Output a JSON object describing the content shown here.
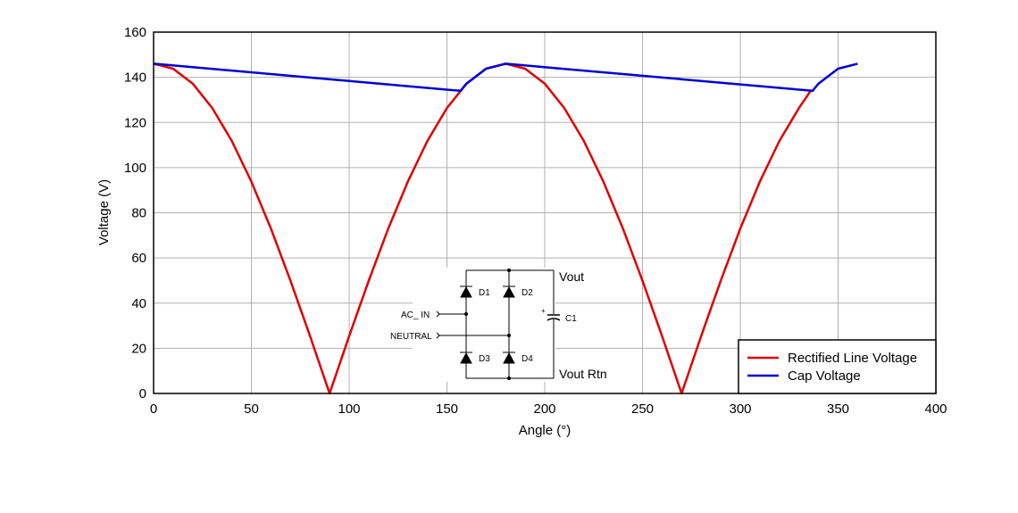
{
  "chart_data": {
    "type": "line",
    "title": "",
    "xlabel": "Angle (°)",
    "ylabel": "Voltage (V)",
    "xlim": [
      0,
      400
    ],
    "ylim": [
      0,
      160
    ],
    "xticks": [
      0,
      50,
      100,
      150,
      200,
      250,
      300,
      350,
      400
    ],
    "yticks": [
      0,
      20,
      40,
      60,
      80,
      100,
      120,
      140,
      160
    ],
    "grid": true,
    "legend_placement": "bottom-right",
    "series": [
      {
        "name": "Rectified Line Voltage",
        "color": "#e00000",
        "points": [
          [
            0,
            146
          ],
          [
            10,
            143.8
          ],
          [
            20,
            137.2
          ],
          [
            30,
            126.4
          ],
          [
            40,
            111.8
          ],
          [
            50,
            93.8
          ],
          [
            60,
            73
          ],
          [
            70,
            49.9
          ],
          [
            80,
            25.4
          ],
          [
            90,
            0
          ],
          [
            100,
            25.4
          ],
          [
            110,
            49.9
          ],
          [
            120,
            73
          ],
          [
            130,
            93.8
          ],
          [
            140,
            111.8
          ],
          [
            150,
            126.4
          ],
          [
            160,
            137.2
          ],
          [
            170,
            143.8
          ],
          [
            180,
            146
          ],
          [
            190,
            143.8
          ],
          [
            200,
            137.2
          ],
          [
            210,
            126.4
          ],
          [
            220,
            111.8
          ],
          [
            230,
            93.8
          ],
          [
            240,
            73
          ],
          [
            250,
            49.9
          ],
          [
            260,
            25.4
          ],
          [
            270,
            0
          ],
          [
            280,
            25.4
          ],
          [
            290,
            49.9
          ],
          [
            300,
            73
          ],
          [
            310,
            93.8
          ],
          [
            320,
            111.8
          ],
          [
            330,
            126.4
          ],
          [
            336,
            134
          ]
        ]
      },
      {
        "name": "Cap Voltage",
        "color": "#0000d0",
        "points": [
          [
            0,
            146
          ],
          [
            157,
            134
          ],
          [
            160,
            137.2
          ],
          [
            170,
            143.8
          ],
          [
            180,
            146
          ],
          [
            337,
            134
          ],
          [
            340,
            137.2
          ],
          [
            350,
            143.8
          ],
          [
            360,
            146
          ]
        ]
      }
    ],
    "inset_schematic": {
      "labels": {
        "vout": "Vout",
        "vout_rtn": "Vout Rtn",
        "ac_in": "AC_ IN",
        "neutral": "NEUTRAL",
        "d1": "D1",
        "d2": "D2",
        "d3": "D3",
        "d4": "D4",
        "c1": "C1",
        "plus": "+"
      }
    }
  }
}
